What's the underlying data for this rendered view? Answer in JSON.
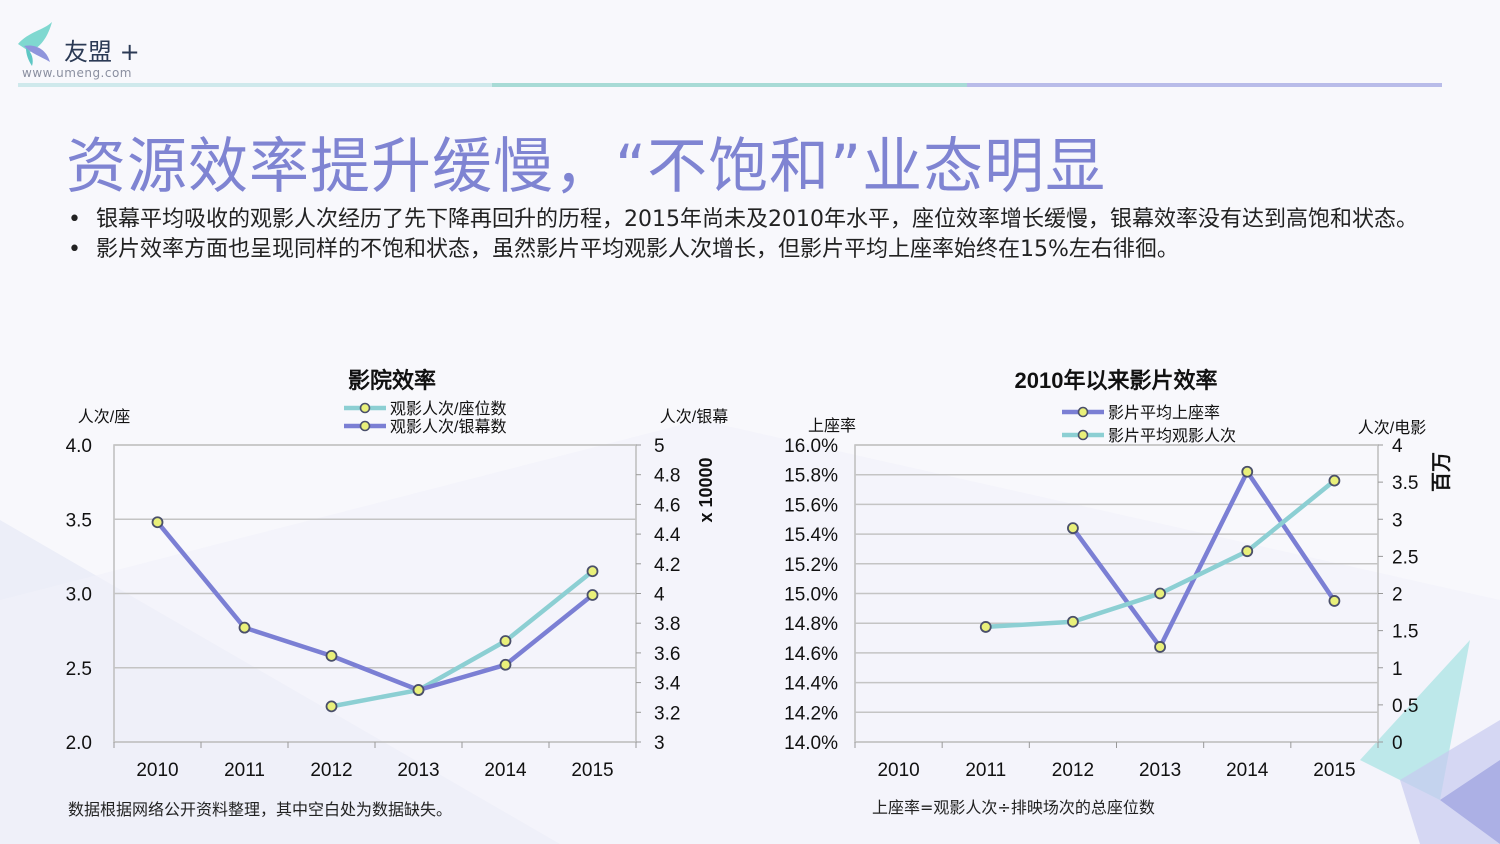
{
  "logo": {
    "name": "友盟",
    "plus": "+",
    "url": "www.umeng.com"
  },
  "colors": {
    "accent": "#7f84d2",
    "series_purple": "#7b7fd4",
    "series_teal": "#8ccfd3",
    "marker": "#e9f07a"
  },
  "title": "资源效率提升缓慢，“不饱和”业态明显",
  "bullets": [
    "银幕平均吸收的观影人次经历了先下降再回升的历程，2015年尚未及2010年水平，座位效率增长缓慢，银幕效率没有达到高饱和状态。",
    "影片效率方面也呈现同样的不饱和状态，虽然影片平均观影人次增长，但影片平均上座率始终在15%左右徘徊。"
  ],
  "bullet_symbol": "•",
  "notes": {
    "left": "数据根据网络公开资料整理，其中空白处为数据缺失。",
    "right": "上座率=观影人次÷排映场次的总座位数"
  },
  "chart_data": [
    {
      "type": "line",
      "title": "影院效率",
      "categories": [
        "2010",
        "2011",
        "2012",
        "2013",
        "2014",
        "2015"
      ],
      "y_left": {
        "label": "人次/座",
        "range": [
          2.0,
          4.0
        ],
        "ticks": [
          "2.0",
          "2.5",
          "3.0",
          "3.5",
          "4.0"
        ]
      },
      "y_right": {
        "label": "人次/银幕",
        "unit": "x 10000",
        "range": [
          3,
          5
        ],
        "ticks": [
          "3",
          "3.2",
          "3.4",
          "3.6",
          "3.8",
          "4",
          "4.2",
          "4.4",
          "4.6",
          "4.8",
          "5"
        ]
      },
      "series": [
        {
          "name": "观影人次/座位数",
          "axis": "left",
          "color": "#8ccfd3",
          "values": [
            null,
            null,
            2.24,
            2.35,
            2.68,
            3.15
          ]
        },
        {
          "name": "观影人次/银幕数",
          "axis": "right",
          "color": "#7b7fd4",
          "values": [
            4.48,
            3.77,
            3.58,
            3.35,
            3.52,
            3.99
          ]
        }
      ]
    },
    {
      "type": "line",
      "title": "2010年以来影片效率",
      "categories": [
        "2010",
        "2011",
        "2012",
        "2013",
        "2014",
        "2015"
      ],
      "y_left": {
        "label": "上座率",
        "range": [
          14.0,
          16.0
        ],
        "ticks": [
          "14.0%",
          "14.2%",
          "14.4%",
          "14.6%",
          "14.8%",
          "15.0%",
          "15.2%",
          "15.4%",
          "15.6%",
          "15.8%",
          "16.0%"
        ]
      },
      "y_right": {
        "label": "人次/电影",
        "unit": "百万",
        "range": [
          0,
          4
        ],
        "ticks": [
          "0",
          "0.5",
          "1",
          "1.5",
          "2",
          "2.5",
          "3",
          "3.5",
          "4"
        ]
      },
      "series": [
        {
          "name": "影片平均上座率",
          "axis": "left",
          "color": "#7b7fd4",
          "values": [
            null,
            null,
            15.44,
            14.64,
            15.82,
            14.95
          ]
        },
        {
          "name": "影片平均观影人次",
          "axis": "right",
          "color": "#8ccfd3",
          "values": [
            null,
            1.55,
            1.62,
            2.0,
            2.57,
            3.52
          ]
        }
      ]
    }
  ]
}
